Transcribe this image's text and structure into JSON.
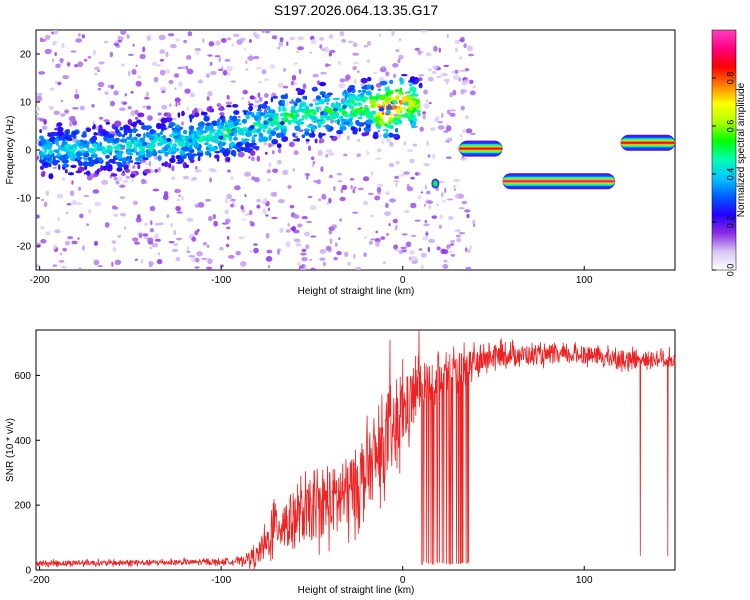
{
  "title": "S197.2026.064.13.35.G17",
  "chart_data": [
    {
      "type": "heatmap",
      "xlabel": "Height of straight line (km)",
      "ylabel": "Frequency (Hz)",
      "xlim": [
        -202,
        150
      ],
      "ylim": [
        -25,
        25
      ],
      "xticks": [
        -200,
        -100,
        0,
        100
      ],
      "yticks": [
        -20,
        -10,
        0,
        10,
        20
      ],
      "grid": false,
      "colorbar": {
        "label": "Normalized spectral amplitude",
        "range": [
          0,
          1
        ],
        "ticks": [
          0.0,
          0.2,
          0.4,
          0.6,
          0.8
        ],
        "colors": [
          "#ffffff",
          "#d8c4f4",
          "#8a2be2",
          "#2400ff",
          "#0060ff",
          "#00c8ff",
          "#00ffb0",
          "#00ff00",
          "#b0ff00",
          "#ffff00",
          "#ff8000",
          "#ff0000",
          "#ff0080",
          "#ff40c0"
        ]
      },
      "ridge": [
        {
          "x": -200,
          "y": 0.0,
          "a": 0.35
        },
        {
          "x": -180,
          "y": 0.2,
          "a": 0.35
        },
        {
          "x": -160,
          "y": 0.4,
          "a": 0.35
        },
        {
          "x": -140,
          "y": 1.0,
          "a": 0.38
        },
        {
          "x": -120,
          "y": 2.0,
          "a": 0.38
        },
        {
          "x": -100,
          "y": 3.0,
          "a": 0.4
        },
        {
          "x": -80,
          "y": 5.0,
          "a": 0.42
        },
        {
          "x": -60,
          "y": 7.0,
          "a": 0.45
        },
        {
          "x": -40,
          "y": 8.0,
          "a": 0.45
        },
        {
          "x": -20,
          "y": 9.0,
          "a": 0.5
        },
        {
          "x": -10,
          "y": 8.0,
          "a": 0.8
        },
        {
          "x": 0,
          "y": 10.0,
          "a": 0.7
        },
        {
          "x": 10,
          "y": 9.0,
          "a": 0.5
        }
      ],
      "segments": [
        {
          "x1": 31,
          "x2": 55,
          "y": 0.3,
          "peak": 0.85
        },
        {
          "x1": 55,
          "x2": 117,
          "y": -6.5,
          "peak": 0.95
        },
        {
          "x1": 120,
          "x2": 150,
          "y": 1.5,
          "peak": 0.85
        }
      ],
      "blob": {
        "x": 18,
        "y": -7.0,
        "peak": 0.55
      }
    },
    {
      "type": "line",
      "xlabel": "Height of straight line (km)",
      "ylabel": "SNR (10 * v/v)",
      "xlim": [
        -202,
        150
      ],
      "ylim": [
        0,
        740
      ],
      "xticks": [
        -200,
        -100,
        0,
        100
      ],
      "yticks": [
        0,
        200,
        400,
        600
      ],
      "color": "#ee2222",
      "series": [
        {
          "name": "SNR",
          "x": [
            -202,
            -180,
            -160,
            -140,
            -120,
            -100,
            -90,
            -80,
            -75,
            -70,
            -60,
            -50,
            -40,
            -30,
            -20,
            -10,
            -5,
            0,
            5,
            10,
            20,
            30,
            40,
            50,
            60,
            80,
            100,
            120,
            150
          ],
          "y": [
            20,
            22,
            22,
            23,
            24,
            25,
            28,
            45,
            80,
            140,
            160,
            180,
            210,
            240,
            300,
            380,
            420,
            470,
            530,
            560,
            600,
            620,
            640,
            660,
            665,
            660,
            665,
            650,
            650
          ],
          "noise": [
            8,
            8,
            8,
            8,
            8,
            8,
            10,
            30,
            50,
            70,
            80,
            90,
            100,
            110,
            110,
            110,
            110,
            110,
            90,
            80,
            60,
            50,
            40,
            35,
            30,
            25,
            25,
            25,
            25
          ]
        }
      ],
      "spikes": [
        {
          "x": -7,
          "y": 710
        },
        {
          "x": 9,
          "y": 740
        },
        {
          "x": 0,
          "y": 650
        }
      ],
      "dropouts": [
        {
          "x1": 10,
          "x2": 40,
          "y": 15,
          "count": 14
        },
        {
          "x1": 122,
          "x2": 148,
          "y": 40,
          "count": 4
        }
      ]
    }
  ]
}
